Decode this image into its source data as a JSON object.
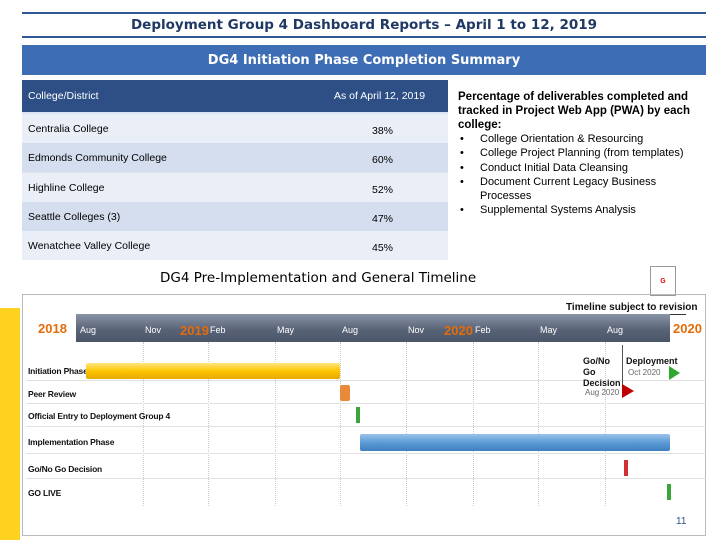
{
  "title": "Deployment Group 4 Dashboard Reports – April 1 to 12, 2019",
  "summary": {
    "heading": "DG4 Initiation Phase Completion Summary",
    "col_district": "College/District",
    "col_asof": "As of April 12, 2019",
    "rows": [
      {
        "name": "Centralia College",
        "pct": "38%"
      },
      {
        "name": "Edmonds Community College",
        "pct": "60%"
      },
      {
        "name": "Highline College",
        "pct": "52%"
      },
      {
        "name": "Seattle Colleges (3)",
        "pct": "47%"
      },
      {
        "name": "Wenatchee Valley College",
        "pct": "45%"
      }
    ]
  },
  "note": {
    "heading": "Percentage of deliverables completed and tracked in Project Web App (PWA) by each college:",
    "items": [
      "College Orientation & Resourcing",
      "College Project Planning (from templates)",
      "Conduct Initial Data Cleansing",
      "Document Current Legacy Business Processes",
      "Supplemental Systems Analysis"
    ]
  },
  "timeline": {
    "heading": "DG4 Pre-Implementation and General Timeline",
    "badge": "G",
    "subject_note": "Timeline subject to revision",
    "years": [
      "2018",
      "2019",
      "2020",
      "2020"
    ],
    "months": [
      "Aug",
      "Nov",
      "Feb",
      "May",
      "Aug",
      "Nov",
      "Feb",
      "May",
      "Aug"
    ],
    "tasks": [
      "Initiation Phase",
      "Peer Review",
      "Official Entry to Deployment Group 4",
      "Implementation Phase",
      "Go/No Go Decision",
      "GO LIVE"
    ],
    "gonogo_label": "Go/No Go Decision",
    "gonogo_date": "Aug 2020",
    "deploy_label": "Deployment",
    "deploy_date": "Oct 2020"
  },
  "page_number": "11",
  "colors": {
    "accent": "#3d6db5",
    "header": "#2e4f86",
    "year": "#e36c0a"
  }
}
